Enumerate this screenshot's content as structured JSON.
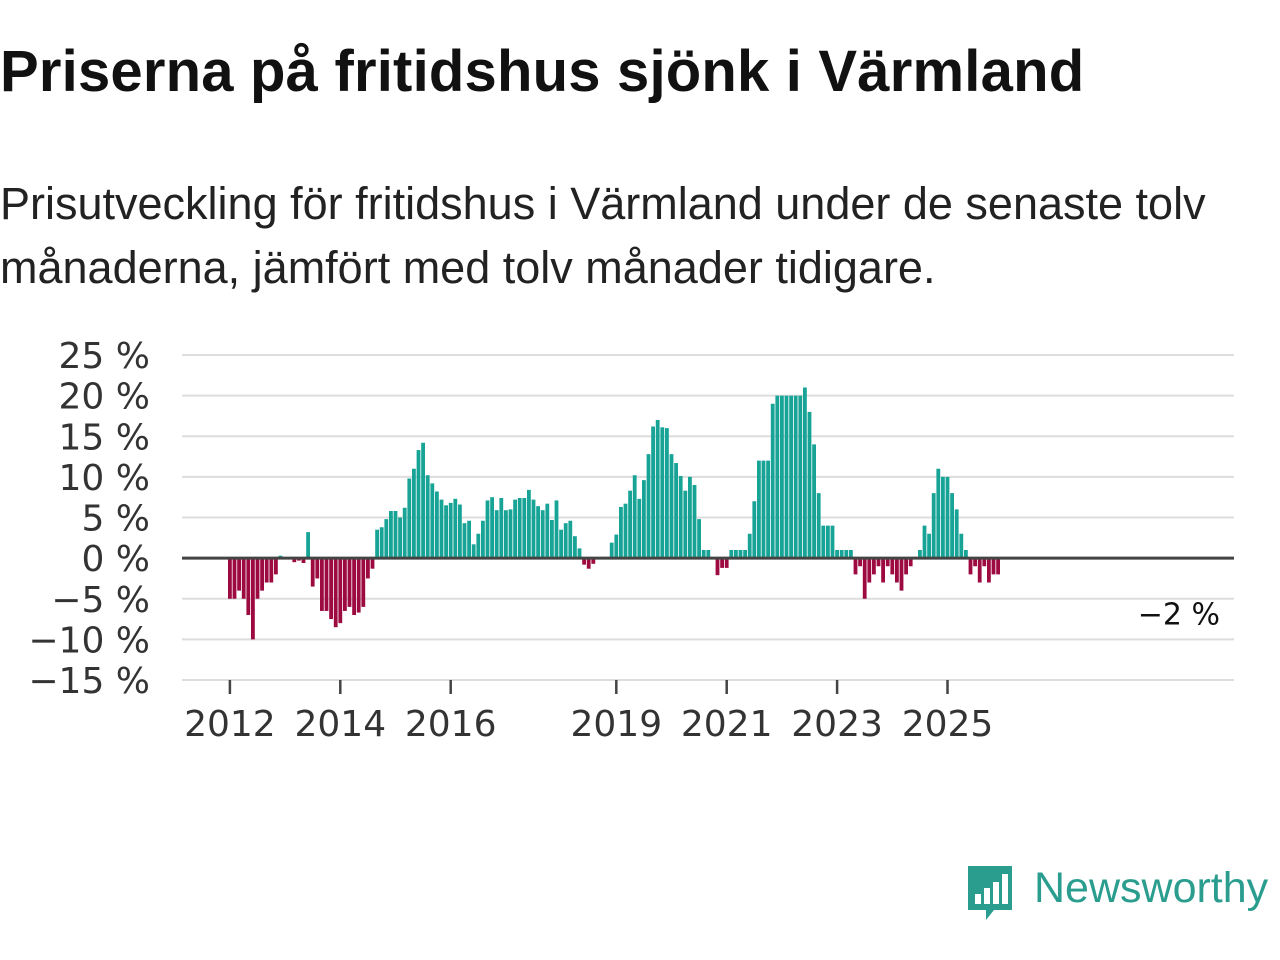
{
  "title": "Priserna på fritidshus sjönk i Värmland",
  "subtitle": "Prisutveckling för fritidshus i Värmland under de senaste tolv månaderna, jämfört med tolv månader tidigare.",
  "brand": {
    "name": "Newsworthy",
    "color": "#2a9d8f",
    "icon": "newsworthy-bar-chart-icon"
  },
  "colors": {
    "positive": "#17a396",
    "negative": "#9c0a3f",
    "grid": "#dddddd",
    "zero": "#444444",
    "text": "#333333"
  },
  "chart_data": {
    "type": "bar",
    "title": "Priserna på fritidshus sjönk i Värmland",
    "xlabel": "",
    "ylabel": "",
    "unit": "%",
    "ylim": [
      -15,
      25
    ],
    "yticks": [
      25,
      20,
      15,
      10,
      5,
      0,
      -5,
      -10,
      -15
    ],
    "ytick_labels": [
      "25 %",
      "20 %",
      "15 %",
      "10 %",
      "5 %",
      "0 %",
      "−5 %",
      "−10 %",
      "−15 %"
    ],
    "x_start": "2012-01",
    "frequency": "monthly",
    "xticks": [
      {
        "label": "2012",
        "index": 0
      },
      {
        "label": "2014",
        "index": 24
      },
      {
        "label": "2016",
        "index": 48
      },
      {
        "label": "2019",
        "index": 84
      },
      {
        "label": "2021",
        "index": 108
      },
      {
        "label": "2023",
        "index": 132
      },
      {
        "label": "2025",
        "index": 156
      }
    ],
    "end_label": "−2 %",
    "values": [
      -5,
      -5,
      -4,
      -5,
      -7,
      -10,
      -5,
      -4,
      -3,
      -3,
      -2,
      0.3,
      null,
      null,
      -0.5,
      -0.3,
      -0.6,
      3.2,
      -3.5,
      -2.5,
      -6.5,
      -6.5,
      -7.5,
      -8.5,
      -8,
      -6.5,
      -6,
      -7,
      -6.7,
      -6,
      -2.5,
      -1.3,
      3.5,
      3.8,
      4.8,
      5.8,
      5.8,
      5,
      6.2,
      9.8,
      11,
      13.3,
      14.2,
      10.2,
      9.2,
      8.2,
      7.2,
      6.5,
      6.8,
      7.3,
      6.6,
      4.3,
      4.6,
      1.7,
      3,
      4.6,
      7.1,
      7.5,
      5.9,
      7.4,
      5.9,
      6,
      7.2,
      7.4,
      7.4,
      8.4,
      7.2,
      6.4,
      5.9,
      6.7,
      4.7,
      7.1,
      3.5,
      4.3,
      4.6,
      2.7,
      1.2,
      -0.8,
      -1.3,
      -0.7,
      null,
      null,
      null,
      1.9,
      2.9,
      6.3,
      6.7,
      8.3,
      10.2,
      7.3,
      9.6,
      12.8,
      16.2,
      17,
      16.1,
      16,
      12.8,
      11.7,
      10.1,
      8.3,
      10,
      9,
      4.8,
      1,
      1,
      null,
      -2.1,
      -1.2,
      -1.2,
      1,
      1,
      1,
      1,
      3,
      7,
      12,
      12,
      12,
      19,
      20,
      20,
      20,
      20,
      20,
      20,
      21,
      18,
      14,
      8,
      4,
      4,
      4,
      1,
      1,
      1,
      1,
      -2,
      -1,
      -5,
      -3,
      -2,
      -1,
      -3,
      -1,
      -2,
      -3,
      -4,
      -2,
      -1,
      null,
      1,
      4,
      3,
      8,
      11,
      10,
      10,
      8,
      6,
      3,
      1,
      -2,
      -1,
      -3,
      -1,
      -3,
      -2,
      -2
    ]
  }
}
